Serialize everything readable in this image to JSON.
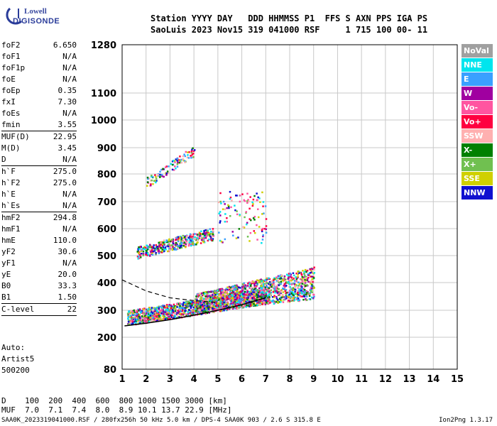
{
  "logo": {
    "line1": "Lowell",
    "line2": "DIGISONDE"
  },
  "header": {
    "line1": "Station YYYY DAY   DDD HHMMSS P1  FFS S AXN PPS IGA PS",
    "line2": "SaoLuis 2023 Nov15 319 041000 RSF     1 715 100 00- 11"
  },
  "params": [
    {
      "label": "foF2",
      "value": "6.650",
      "sep_after": false
    },
    {
      "label": "foF1",
      "value": "N/A",
      "sep_after": false
    },
    {
      "label": "foF1p",
      "value": "N/A",
      "sep_after": false
    },
    {
      "label": "foE",
      "value": "N/A",
      "sep_after": false
    },
    {
      "label": "foEp",
      "value": "0.35",
      "sep_after": false
    },
    {
      "label": "fxI",
      "value": "7.30",
      "sep_after": false
    },
    {
      "label": "foEs",
      "value": "N/A",
      "sep_after": false
    },
    {
      "label": "fmin",
      "value": "3.55",
      "sep_after": true
    },
    {
      "label": "MUF(D)",
      "value": "22.95",
      "sep_after": false
    },
    {
      "label": "M(D)",
      "value": "3.45",
      "sep_after": false
    },
    {
      "label": "D",
      "value": "N/A",
      "sep_after": true
    },
    {
      "label": "h`F",
      "value": "275.0",
      "sep_after": false
    },
    {
      "label": "h`F2",
      "value": "275.0",
      "sep_after": false
    },
    {
      "label": "h`E",
      "value": "N/A",
      "sep_after": false
    },
    {
      "label": "h`Es",
      "value": "N/A",
      "sep_after": true
    },
    {
      "label": "hmF2",
      "value": "294.8",
      "sep_after": false
    },
    {
      "label": "hmF1",
      "value": "N/A",
      "sep_after": false
    },
    {
      "label": "hmE",
      "value": "110.0",
      "sep_after": false
    },
    {
      "label": "yF2",
      "value": "30.6",
      "sep_after": false
    },
    {
      "label": "yF1",
      "value": "N/A",
      "sep_after": false
    },
    {
      "label": "yE",
      "value": "20.0",
      "sep_after": false
    },
    {
      "label": "B0",
      "value": "33.3",
      "sep_after": false
    },
    {
      "label": "B1",
      "value": "1.50",
      "sep_after": true
    },
    {
      "label": "C-level",
      "value": "22",
      "sep_after": true
    }
  ],
  "auto": [
    "Auto:",
    "Artist5",
    "500200"
  ],
  "legend": [
    {
      "label": "NoVal",
      "color": "#a0a0a0"
    },
    {
      "label": "NNE",
      "color": "#00e5ee"
    },
    {
      "label": "E",
      "color": "#3aa0ff"
    },
    {
      "label": "W",
      "color": "#a000a0"
    },
    {
      "label": "Vo-",
      "color": "#ff55a0"
    },
    {
      "label": "Vo+",
      "color": "#ff0040"
    },
    {
      "label": "SSW",
      "color": "#ffb0b0"
    },
    {
      "label": "X-",
      "color": "#008000"
    },
    {
      "label": "X+",
      "color": "#70c050"
    },
    {
      "label": "SSE",
      "color": "#d0d000"
    },
    {
      "label": "NNW",
      "color": "#1010d0"
    }
  ],
  "chart_data": {
    "type": "scatter",
    "xlim": [
      1,
      15
    ],
    "ylim": [
      80,
      1280
    ],
    "x_ticks": [
      1,
      2,
      3,
      4,
      5,
      6,
      7,
      8,
      9,
      10,
      11,
      12,
      13,
      14,
      15
    ],
    "y_ticks": [
      80,
      200,
      300,
      400,
      500,
      600,
      700,
      800,
      900,
      1000,
      1100,
      1280
    ],
    "y_scale": "reciprocal-like (nonlinear)",
    "grid": true,
    "trace_fit": {
      "x": [
        1.1,
        2,
        3,
        4,
        5,
        6,
        7
      ],
      "y": [
        242,
        252,
        265,
        282,
        300,
        320,
        345
      ]
    },
    "trace_dashed": {
      "x": [
        1.0,
        2.0,
        3.0,
        4.0,
        5.0
      ],
      "y": [
        410,
        370,
        345,
        335,
        328
      ]
    },
    "echo_regions": [
      {
        "name": "F-trace",
        "x": [
          1.2,
          7.0
        ],
        "y": [
          245,
          330
        ],
        "density": "high"
      },
      {
        "name": "spread-F",
        "x": [
          4.0,
          9.0
        ],
        "y": [
          300,
          460
        ],
        "density": "high"
      },
      {
        "name": "2F-trace",
        "x": [
          1.6,
          4.8
        ],
        "y": [
          490,
          620
        ],
        "density": "medium"
      },
      {
        "name": "scattered-upper",
        "x": [
          5.0,
          7.0
        ],
        "y": [
          550,
          740
        ],
        "density": "low"
      },
      {
        "name": "3F-trace",
        "x": [
          2.0,
          4.0
        ],
        "y": [
          750,
          900
        ],
        "density": "low"
      }
    ]
  },
  "footer": {
    "d_row": "D    100  200  400  600  800 1000 1500 3000 [km]",
    "muf_row": "MUF  7.0  7.1  7.4  8.0  8.9 10.1 13.7 22.9 [MHz]",
    "file_line": "SAA0K_2023319041000.RSF / 280fx256h 50 kHz 5.0 km / DPS-4 SAA0K 903 / 2.6 S 315.8 E",
    "version": "Ion2Png 1.3.17"
  }
}
